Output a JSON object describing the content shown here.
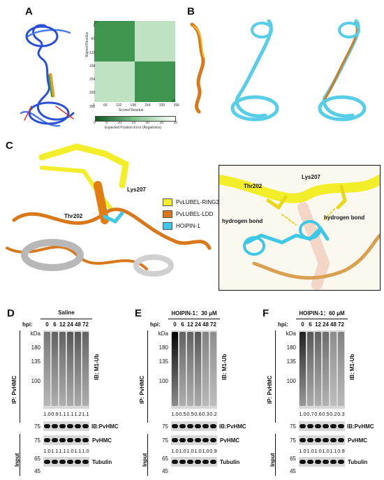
{
  "panels": {
    "a": "A",
    "b": "B",
    "c": "C",
    "d": "D",
    "e": "E",
    "f": "F"
  },
  "pae": {
    "xlabel": "Scored Residue",
    "ylabel": "Aligned Residue",
    "ticks": [
      "1",
      "66",
      "132",
      "198",
      "264",
      "330",
      "396"
    ],
    "colorbar_label": "Expected Position Error (Ångströms)",
    "colorbar_ticks": [
      "0",
      "5",
      "10",
      "15",
      "20",
      "25",
      "30"
    ]
  },
  "structure": {
    "thr": "Thr202",
    "lys": "Lys207",
    "hbond1": "hydrogen bond",
    "hbond2": "hydrogen bond",
    "legend": [
      {
        "label": "PvLUBEL-RING2",
        "color": "#f2ee2a"
      },
      {
        "label": "PvLUBEL-LDD",
        "color": "#d9781a"
      },
      {
        "label": "HOIPIN-1",
        "color": "#3cc8e6"
      }
    ]
  },
  "blots": [
    {
      "condition": "Saline",
      "hpi_label": "hpi:",
      "hpi": [
        "0",
        "6",
        "12",
        "24",
        "48",
        "72"
      ],
      "ip_label": "IP: PvHMC",
      "ib_label": "IB: M1-Ub",
      "markers": [
        "kDa",
        "180",
        "135",
        "100"
      ],
      "quant_top": [
        "1.0",
        "0.9",
        "1.1",
        "1.1",
        "1.2",
        "1.1"
      ],
      "ib_hmc": "IB:PvHMC",
      "marker_75a": "75",
      "input_label": "Input",
      "hmc": "PvHMC",
      "marker_75b": "75",
      "quant_bottom": [
        "1.0",
        "1.1",
        "1.1",
        "1.0",
        "1.1",
        "1.0"
      ],
      "marker_65": "65",
      "marker_45": "45",
      "tubulin": "Tubulin"
    },
    {
      "condition": "HOIPIN-1：30 μM",
      "hpi_label": "hpi:",
      "hpi": [
        "0",
        "6",
        "12",
        "24",
        "48",
        "72"
      ],
      "ip_label": "IP: PvHMC",
      "ib_label": "IB: M1-Ub",
      "markers": [
        "kDa",
        "180",
        "135",
        "100"
      ],
      "quant_top": [
        "1.0",
        "0.5",
        "0.5",
        "0.6",
        "0.3",
        "0.2"
      ],
      "ib_hmc": "IB:PvHMC",
      "marker_75a": "75",
      "input_label": "Input",
      "hmc": "PvHMC",
      "marker_75b": "75",
      "quant_bottom": [
        "1.0",
        "1.0",
        "1.0",
        "1.0",
        "1.0",
        "0.9"
      ],
      "marker_65": "65",
      "marker_45": "45",
      "tubulin": "Tubulin"
    },
    {
      "condition": "HOIPIN-1：60 μM",
      "hpi_label": "hpi:",
      "hpi": [
        "0",
        "6",
        "12",
        "24",
        "48",
        "72"
      ],
      "ip_label": "IP: PvHMC",
      "ib_label": "IB: M1-Ub",
      "markers": [
        "kDa",
        "180",
        "135",
        "100"
      ],
      "quant_top": [
        "1.0",
        "0.7",
        "0.6",
        "0.5",
        "0.2",
        "0.3"
      ],
      "ib_hmc": "IB:PvHMC",
      "marker_75a": "75",
      "input_label": "Input",
      "hmc": "PvHMC",
      "marker_75b": "75",
      "quant_bottom": [
        "1.0",
        "1.0",
        "1.0",
        "1.0",
        "1.1",
        "0.9"
      ],
      "marker_65": "65",
      "marker_45": "45",
      "tubulin": "Tubulin"
    }
  ]
}
